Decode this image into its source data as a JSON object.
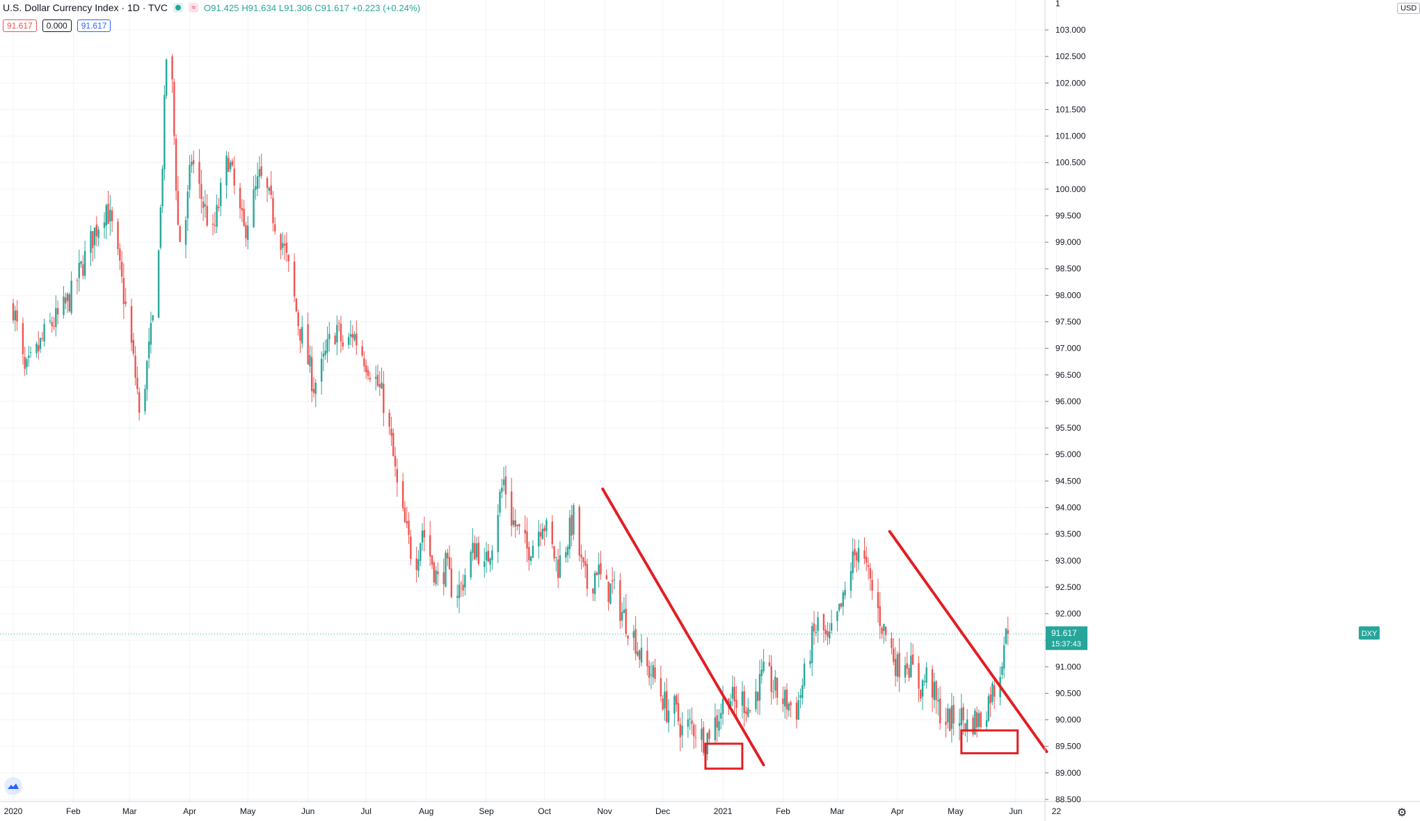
{
  "legend": {
    "title": "U.S. Dollar Currency Index · 1D · TVC",
    "ohlc": "O91.425  H91.634  L91.306  C91.617  +0.223 (+0.24%)",
    "badge_sell": "91.617",
    "badge_spread": "0.000",
    "badge_buy": "91.617"
  },
  "price_scale": {
    "currency": "USD",
    "ticks": [
      "103.000",
      "102.500",
      "102.000",
      "101.500",
      "101.000",
      "100.500",
      "100.000",
      "99.500",
      "99.000",
      "98.500",
      "98.000",
      "97.500",
      "97.000",
      "96.500",
      "96.000",
      "95.500",
      "95.000",
      "94.500",
      "94.000",
      "93.500",
      "93.000",
      "92.500",
      "92.000",
      "91.500",
      "91.000",
      "90.500",
      "90.000",
      "89.500",
      "89.000",
      "88.500"
    ]
  },
  "last_price": {
    "symbol": "DXY",
    "value": "91.617",
    "countdown": "15:37:43"
  },
  "colors": {
    "up": "#26a69a",
    "down": "#ef5350",
    "drawing": "#e31e24",
    "grid": "#f0f3fa",
    "axis_text": "#131722"
  },
  "chart_data": {
    "type": "candlestick",
    "symbol": "DXY",
    "interval": "1D",
    "ylim": [
      88.5,
      103.0
    ],
    "time_labels": [
      {
        "label": "2020",
        "day": 0
      },
      {
        "label": "Feb",
        "day": 31
      },
      {
        "label": "Mar",
        "day": 60
      },
      {
        "label": "Apr",
        "day": 91
      },
      {
        "label": "May",
        "day": 121
      },
      {
        "label": "Jun",
        "day": 152
      },
      {
        "label": "Jul",
        "day": 182
      },
      {
        "label": "Aug",
        "day": 213
      },
      {
        "label": "Sep",
        "day": 244
      },
      {
        "label": "Oct",
        "day": 274
      },
      {
        "label": "Nov",
        "day": 305
      },
      {
        "label": "Dec",
        "day": 335
      },
      {
        "label": "2021",
        "day": 366
      },
      {
        "label": "Feb",
        "day": 397
      },
      {
        "label": "Mar",
        "day": 425
      },
      {
        "label": "Apr",
        "day": 456
      },
      {
        "label": "May",
        "day": 486
      },
      {
        "label": "Jun",
        "day": 517
      },
      {
        "label": "22",
        "day": 538
      }
    ],
    "close_path": [
      [
        0,
        97.8
      ],
      [
        6,
        96.5
      ],
      [
        12,
        96.9
      ],
      [
        18,
        97.4
      ],
      [
        24,
        97.6
      ],
      [
        30,
        98.0
      ],
      [
        36,
        98.6
      ],
      [
        42,
        99.2
      ],
      [
        48,
        99.7
      ],
      [
        52,
        99.1
      ],
      [
        57,
        98.0
      ],
      [
        60,
        97.3
      ],
      [
        64,
        96.2
      ],
      [
        66,
        95.1
      ],
      [
        68,
        96.4
      ],
      [
        72,
        97.5
      ],
      [
        76,
        99.6
      ],
      [
        78,
        101.5
      ],
      [
        79,
        102.5
      ],
      [
        81,
        102.8
      ],
      [
        83,
        101.0
      ],
      [
        85,
        99.3
      ],
      [
        87,
        98.8
      ],
      [
        90,
        99.8
      ],
      [
        92,
        100.6
      ],
      [
        95,
        100.1
      ],
      [
        99,
        99.6
      ],
      [
        103,
        99.1
      ],
      [
        107,
        99.9
      ],
      [
        111,
        100.6
      ],
      [
        115,
        99.8
      ],
      [
        119,
        99.2
      ],
      [
        123,
        99.7
      ],
      [
        127,
        100.2
      ],
      [
        131,
        99.9
      ],
      [
        135,
        99.4
      ],
      [
        139,
        99.0
      ],
      [
        143,
        98.3
      ],
      [
        147,
        97.5
      ],
      [
        151,
        96.9
      ],
      [
        155,
        96.3
      ],
      [
        159,
        96.6
      ],
      [
        163,
        97.1
      ],
      [
        167,
        97.4
      ],
      [
        171,
        96.9
      ],
      [
        175,
        97.3
      ],
      [
        179,
        97.0
      ],
      [
        183,
        96.7
      ],
      [
        187,
        96.4
      ],
      [
        191,
        96.0
      ],
      [
        195,
        95.2
      ],
      [
        199,
        94.1
      ],
      [
        203,
        93.5
      ],
      [
        207,
        92.9
      ],
      [
        211,
        93.6
      ],
      [
        215,
        93.1
      ],
      [
        219,
        92.6
      ],
      [
        223,
        92.9
      ],
      [
        227,
        92.4
      ],
      [
        231,
        92.5
      ],
      [
        235,
        93.0
      ],
      [
        239,
        93.3
      ],
      [
        243,
        92.8
      ],
      [
        247,
        93.4
      ],
      [
        251,
        94.2
      ],
      [
        253,
        94.5
      ],
      [
        257,
        93.8
      ],
      [
        261,
        93.5
      ],
      [
        265,
        93.2
      ],
      [
        269,
        93.4
      ],
      [
        273,
        93.8
      ],
      [
        277,
        93.3
      ],
      [
        281,
        92.9
      ],
      [
        285,
        93.3
      ],
      [
        289,
        93.8
      ],
      [
        293,
        92.9
      ],
      [
        297,
        92.4
      ],
      [
        301,
        92.9
      ],
      [
        305,
        92.4
      ],
      [
        309,
        92.5
      ],
      [
        313,
        92.1
      ],
      [
        317,
        91.8
      ],
      [
        321,
        91.5
      ],
      [
        325,
        91.0
      ],
      [
        329,
        90.9
      ],
      [
        333,
        90.6
      ],
      [
        337,
        90.2
      ],
      [
        341,
        90.2
      ],
      [
        345,
        89.8
      ],
      [
        349,
        89.9
      ],
      [
        353,
        89.8
      ],
      [
        357,
        89.6
      ],
      [
        360,
        89.9
      ],
      [
        363,
        90.0
      ],
      [
        366,
        90.3
      ],
      [
        369,
        90.5
      ],
      [
        372,
        90.3
      ],
      [
        376,
        90.4
      ],
      [
        380,
        90.2
      ],
      [
        384,
        90.6
      ],
      [
        388,
        90.9
      ],
      [
        392,
        90.6
      ],
      [
        396,
        90.4
      ],
      [
        400,
        90.3
      ],
      [
        404,
        90.2
      ],
      [
        408,
        90.8
      ],
      [
        412,
        91.5
      ],
      [
        416,
        91.9
      ],
      [
        420,
        91.4
      ],
      [
        424,
        91.8
      ],
      [
        428,
        92.2
      ],
      [
        432,
        92.9
      ],
      [
        436,
        93.3
      ],
      [
        440,
        92.8
      ],
      [
        444,
        92.3
      ],
      [
        448,
        91.8
      ],
      [
        452,
        91.4
      ],
      [
        456,
        91.0
      ],
      [
        460,
        91.2
      ],
      [
        464,
        90.9
      ],
      [
        468,
        90.6
      ],
      [
        472,
        90.9
      ],
      [
        476,
        90.3
      ],
      [
        480,
        90.0
      ],
      [
        484,
        90.0
      ],
      [
        488,
        90.1
      ],
      [
        492,
        89.9
      ],
      [
        496,
        90.0
      ],
      [
        500,
        90.0
      ],
      [
        504,
        90.5
      ],
      [
        508,
        90.7
      ],
      [
        511,
        91.5
      ],
      [
        513,
        91.617
      ]
    ],
    "annotations": [
      {
        "type": "trendline",
        "from": {
          "day": 304,
          "price": 94.35
        },
        "to": {
          "day": 387,
          "price": 89.15
        }
      },
      {
        "type": "trendline",
        "from": {
          "day": 452,
          "price": 93.55
        },
        "to": {
          "day": 533,
          "price": 89.4
        }
      },
      {
        "type": "rectangle",
        "from": {
          "day": 357,
          "price": 89.55
        },
        "to": {
          "day": 376,
          "price": 89.08
        }
      },
      {
        "type": "rectangle",
        "from": {
          "day": 489,
          "price": 89.8
        },
        "to": {
          "day": 518,
          "price": 89.37
        }
      }
    ]
  }
}
